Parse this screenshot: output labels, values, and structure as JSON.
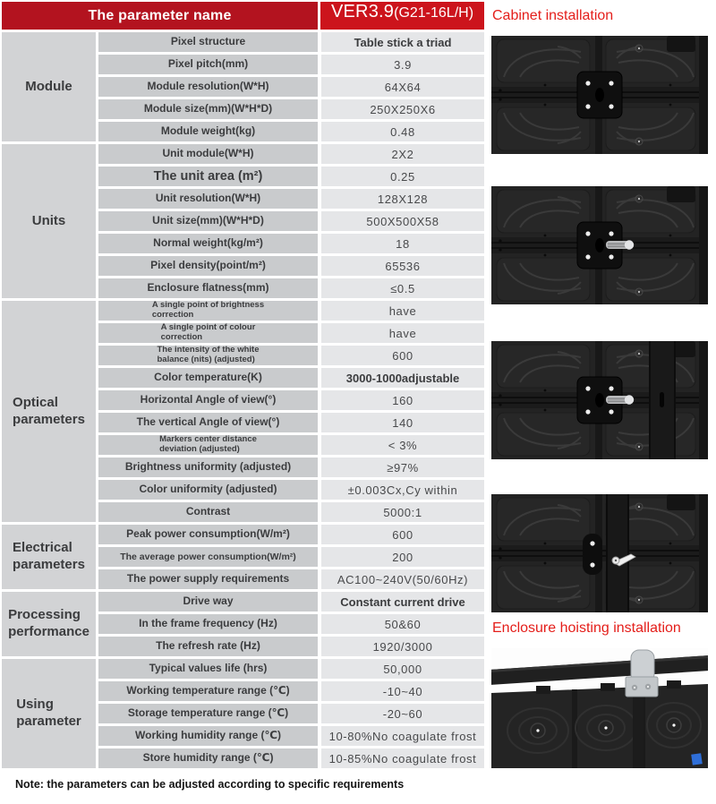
{
  "header": {
    "left_title": "The parameter name",
    "model_main": "VER3.9",
    "model_sub": "(G21-16L/H)"
  },
  "colors": {
    "header_left_red": "#b3131f",
    "header_right_red": "#cc141c",
    "caption_red": "#e41e1a",
    "category_bg": "#d2d3d5",
    "parameter_bg": "#c9cbcd",
    "value_bg": "#e5e6e8"
  },
  "sections": [
    {
      "category": "Module",
      "rows": [
        {
          "label": "Pixel structure",
          "value": "Table stick a triad",
          "bold": true
        },
        {
          "label": "Pixel pitch(mm)",
          "value": "3.9"
        },
        {
          "label": "Module resolution(W*H)",
          "value": "64X64"
        },
        {
          "label": "Module size(mm)(W*H*D)",
          "value": "250X250X6"
        },
        {
          "label": "Module weight(kg)",
          "value": "0.48"
        }
      ]
    },
    {
      "category": "Units",
      "rows": [
        {
          "label": "Unit module(W*H)",
          "value": "2X2"
        },
        {
          "label": "The unit area (m²)",
          "value": "0.25",
          "large": true
        },
        {
          "label": "Unit resolution(W*H)",
          "value": "128X128"
        },
        {
          "label": "Unit size(mm)(W*H*D)",
          "value": "500X500X58"
        },
        {
          "label": "Normal weight(kg/m²)",
          "value": "18"
        },
        {
          "label": "Pixel density(point/m²)",
          "value": "65536"
        },
        {
          "label": "Enclosure flatness(mm)",
          "value": "≤0.5"
        }
      ]
    },
    {
      "category": "Optical\nparameters",
      "rows": [
        {
          "label": "A single point of brightness\ncorrection",
          "value": "have",
          "small": true
        },
        {
          "label": "A single point of colour\ncorrection",
          "value": "have",
          "small": true
        },
        {
          "label": "The intensity of the white\nbalance (nits) (adjusted)",
          "value": "600",
          "small": true
        },
        {
          "label": "Color temperature(K)",
          "value": "3000-1000adjustable",
          "bold": true
        },
        {
          "label": "Horizontal Angle of view(°)",
          "value": "160"
        },
        {
          "label": "The vertical Angle of view(°)",
          "value": "140"
        },
        {
          "label": "Markers center distance\ndeviation (adjusted)",
          "value": "< 3%",
          "small": true
        },
        {
          "label": "Brightness uniformity (adjusted)",
          "value": "≥97%"
        },
        {
          "label": "Color uniformity (adjusted)",
          "value": "±0.003Cx,Cy within"
        },
        {
          "label": "Contrast",
          "value": "5000:1"
        }
      ]
    },
    {
      "category": "Electrical\nparameters",
      "rows": [
        {
          "label": "Peak power consumption(W/m²)",
          "value": "600"
        },
        {
          "label": "The average power consumption(W/m²)",
          "value": "200",
          "dense": true
        },
        {
          "label": "The power supply requirements",
          "value": "AC100~240V(50/60Hz)"
        }
      ]
    },
    {
      "category": "Processing\nperformance",
      "rows": [
        {
          "label": "Drive way",
          "value": "Constant current drive",
          "bold": true
        },
        {
          "label": "In the frame frequency (Hz)",
          "value": "50&60"
        },
        {
          "label": "The refresh rate (Hz)",
          "value": "1920/3000"
        }
      ]
    },
    {
      "category": "Using\nparameter",
      "rows": [
        {
          "label": "Typical values life (hrs)",
          "value": "50,000"
        },
        {
          "label": "Working temperature range (℃)",
          "value": "-10~40"
        },
        {
          "label": "Storage temperature range (℃)",
          "value": "-20~60"
        },
        {
          "label": "Working humidity range (℃)",
          "value": "10-80%No coagulate frost"
        },
        {
          "label": "Store humidity range (℃)",
          "value": "10-85%No coagulate frost"
        }
      ]
    }
  ],
  "figures": {
    "cabinet_caption": "Cabinet installation",
    "hoisting_caption": "Enclosure hoisting installation"
  },
  "note": "Note: the parameters can be adjusted according to specific requirements"
}
